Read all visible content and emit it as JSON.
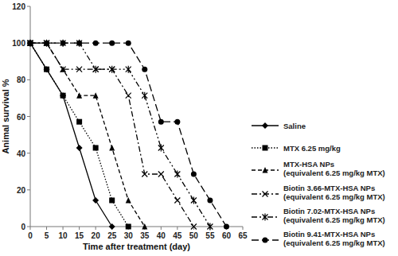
{
  "chart_data": {
    "type": "line",
    "x_label": "Time after treatment (day)",
    "y_label": "Animal survival %",
    "x": [
      0,
      5,
      10,
      15,
      20,
      25,
      30,
      35,
      40,
      45,
      50,
      55,
      60
    ],
    "xlim": [
      0,
      65
    ],
    "xticks": [
      0,
      5,
      10,
      15,
      20,
      25,
      30,
      35,
      40,
      45,
      50,
      55,
      60,
      65
    ],
    "ylim": [
      0,
      120
    ],
    "yticks": [
      0,
      20,
      40,
      60,
      80,
      100,
      120
    ],
    "grid": false,
    "legend": "right",
    "series": [
      {
        "name": "Saline",
        "color": "#000000",
        "marker": "diamond",
        "line_style": "solid",
        "values": [
          100,
          85.7,
          71.4,
          42.9,
          14.3,
          0,
          null,
          null,
          null,
          null,
          null,
          null,
          null
        ]
      },
      {
        "name": "MTX 6.25 mg/kg",
        "color": "#000000",
        "marker": "square",
        "line_style": "dotted",
        "values": [
          100,
          85.7,
          71.4,
          57.1,
          42.9,
          14.3,
          0,
          null,
          null,
          null,
          null,
          null,
          null
        ]
      },
      {
        "name": "MTX-HSA NPs (equivalent 6.25 mg/kg MTX)",
        "color": "#000000",
        "marker": "triangle",
        "line_style": "dashed",
        "values": [
          100,
          100,
          85.7,
          71.4,
          71.4,
          42.9,
          14.3,
          0,
          null,
          null,
          null,
          null,
          null
        ]
      },
      {
        "name": "Biotin 3.66-MTX-HSA NPs (equivalent 6.25 mg/kg MTX)",
        "color": "#000000",
        "marker": "x",
        "line_style": "dashdot",
        "values": [
          100,
          100,
          85.7,
          85.7,
          85.7,
          85.7,
          71.4,
          28.6,
          28.6,
          14.3,
          0,
          null,
          null
        ]
      },
      {
        "name": "Biotin 7.02-MTX-HSA NPs (equivalent 6.25 mg/kg MTX)",
        "color": "#000000",
        "marker": "asterisk",
        "line_style": "dashdotdot",
        "values": [
          100,
          100,
          100,
          100,
          85.7,
          85.7,
          85.7,
          71.4,
          42.9,
          28.6,
          14.3,
          0,
          null
        ]
      },
      {
        "name": "Biotin 9.41-MTX-HSA NPs (equivalent 6.25 mg/kg MTX)",
        "color": "#000000",
        "marker": "circle",
        "line_style": "longdash",
        "values": [
          100,
          100,
          100,
          100,
          100,
          100,
          100,
          85.7,
          57.1,
          57.1,
          28.6,
          14.3,
          0
        ]
      }
    ]
  }
}
